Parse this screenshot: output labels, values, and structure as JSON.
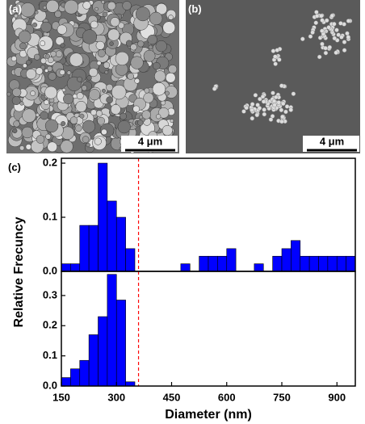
{
  "images": [
    {
      "label": "(a)",
      "scale": "4 μm"
    },
    {
      "label": "(b)",
      "scale": "4 μm"
    }
  ],
  "chart_data": [
    {
      "type": "histogram",
      "panel_label": "(c)",
      "ylabel": "Relative Frecuncy",
      "color": "#0000ff",
      "reference_line": 360,
      "reference_color": "#ff0000",
      "bins": [
        150,
        175,
        200,
        225,
        250,
        275,
        300,
        325,
        350,
        375,
        400,
        425,
        450,
        475,
        500,
        525,
        550,
        575,
        600,
        625,
        650,
        675,
        700,
        725,
        750,
        775,
        800,
        825,
        850,
        875,
        900,
        925,
        950
      ],
      "values": [
        0.014,
        0.014,
        0.085,
        0.085,
        0.2,
        0.13,
        0.1,
        0.042,
        0,
        0,
        0,
        0,
        0,
        0.014,
        0,
        0.028,
        0.028,
        0.028,
        0.042,
        0,
        0,
        0.014,
        0,
        0.028,
        0.042,
        0.057,
        0.028,
        0.028,
        0.028,
        0.028,
        0.028,
        0.028
      ],
      "xlim": [
        150,
        950
      ],
      "ylim": [
        0,
        0.209
      ],
      "yticks": [
        {
          "value": 0,
          "label": "0.0"
        },
        0.1,
        0.2
      ]
    },
    {
      "type": "histogram",
      "xlabel": "Diameter (nm)",
      "color": "#0000ff",
      "reference_line": 360,
      "reference_color": "#ff0000",
      "bins": [
        150,
        175,
        200,
        225,
        250,
        275,
        300,
        325,
        350
      ],
      "values": [
        0.028,
        0.057,
        0.085,
        0.17,
        0.23,
        0.37,
        0.285,
        0.014
      ],
      "xlim": [
        150,
        950
      ],
      "ylim": [
        0,
        0.38
      ],
      "yticks": [
        {
          "value": 0,
          "label": "0.0"
        },
        0.1,
        0.2,
        0.3
      ],
      "xticks": [
        150,
        300,
        450,
        600,
        750,
        900
      ]
    }
  ]
}
